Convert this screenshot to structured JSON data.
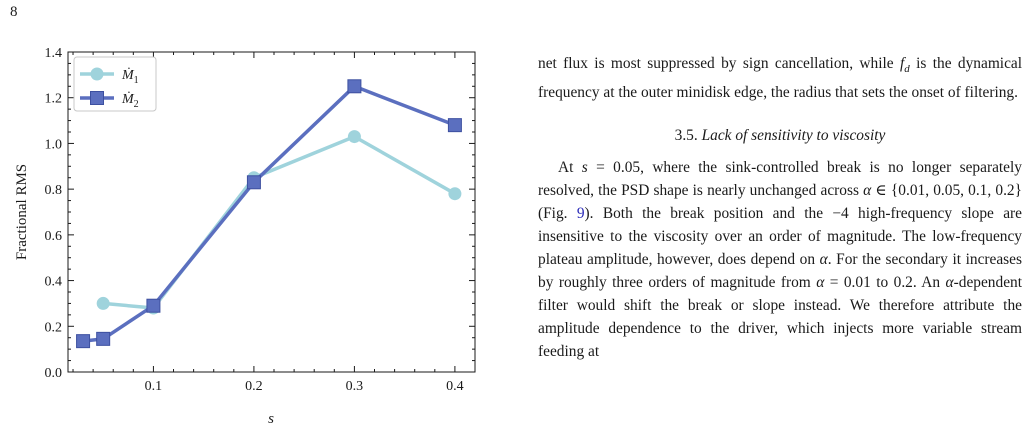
{
  "page_number": "8",
  "chart_data": {
    "type": "line",
    "xlabel": "s",
    "ylabel": "Fractional RMS",
    "xlim": [
      0.015,
      0.42
    ],
    "ylim": [
      0.0,
      1.4
    ],
    "x_ticks": [
      0.1,
      0.2,
      0.3,
      0.4
    ],
    "x_tick_labels": [
      "0.1",
      "0.2",
      "0.3",
      "0.4"
    ],
    "y_ticks": [
      0.0,
      0.2,
      0.4,
      0.6,
      0.8,
      1.0,
      1.2,
      1.4
    ],
    "y_tick_labels": [
      "0.0",
      "0.2",
      "0.4",
      "0.6",
      "0.8",
      "1.0",
      "1.2",
      "1.4"
    ],
    "legend_position": "top-left",
    "grid": false,
    "series": [
      {
        "name": "Ṁ1",
        "label_main": "Ṁ",
        "label_sub": "1",
        "marker": "circle",
        "color": "#9fd3dc",
        "x": [
          0.05,
          0.1,
          0.2,
          0.3,
          0.4
        ],
        "y": [
          0.3,
          0.28,
          0.85,
          1.03,
          0.78
        ]
      },
      {
        "name": "Ṁ2",
        "label_main": "Ṁ",
        "label_sub": "2",
        "marker": "square",
        "color": "#5b6fbf",
        "x": [
          0.03,
          0.05,
          0.1,
          0.2,
          0.3,
          0.4
        ],
        "y": [
          0.135,
          0.145,
          0.29,
          0.83,
          1.25,
          1.08
        ]
      }
    ]
  },
  "text": {
    "intro_a": "net flux is most suppressed by sign cancellation, while ",
    "intro_fd": "f",
    "intro_fd_sub": "d",
    "intro_b": " is the dynamical frequency at the outer minidisk edge, the radius that sets the onset of filtering.",
    "section_number": "3.5.",
    "section_title": "Lack of sensitivity to viscosity",
    "body_a": "At ",
    "body_s": "s",
    "body_b": " = 0.05, where the sink-controlled break is no longer separately resolved, the PSD shape is nearly unchanged across ",
    "body_alpha": "α",
    "body_c": " ∈ {0.01, 0.05, 0.1, 0.2} (Fig. ",
    "fig_ref": "9",
    "body_d": "). Both the break position and the −4 high-frequency slope are insensitive to the viscosity over an order of magnitude. The low-frequency plateau amplitude, however, does depend on ",
    "body_e": ". For the secondary it increases by roughly three orders of magnitude from ",
    "body_f": " = 0.01 to 0.2. An ",
    "body_g": "-dependent filter would shift the break or slope instead. We therefore attribute the amplitude dependence to the driver, which injects more variable stream feeding at"
  }
}
